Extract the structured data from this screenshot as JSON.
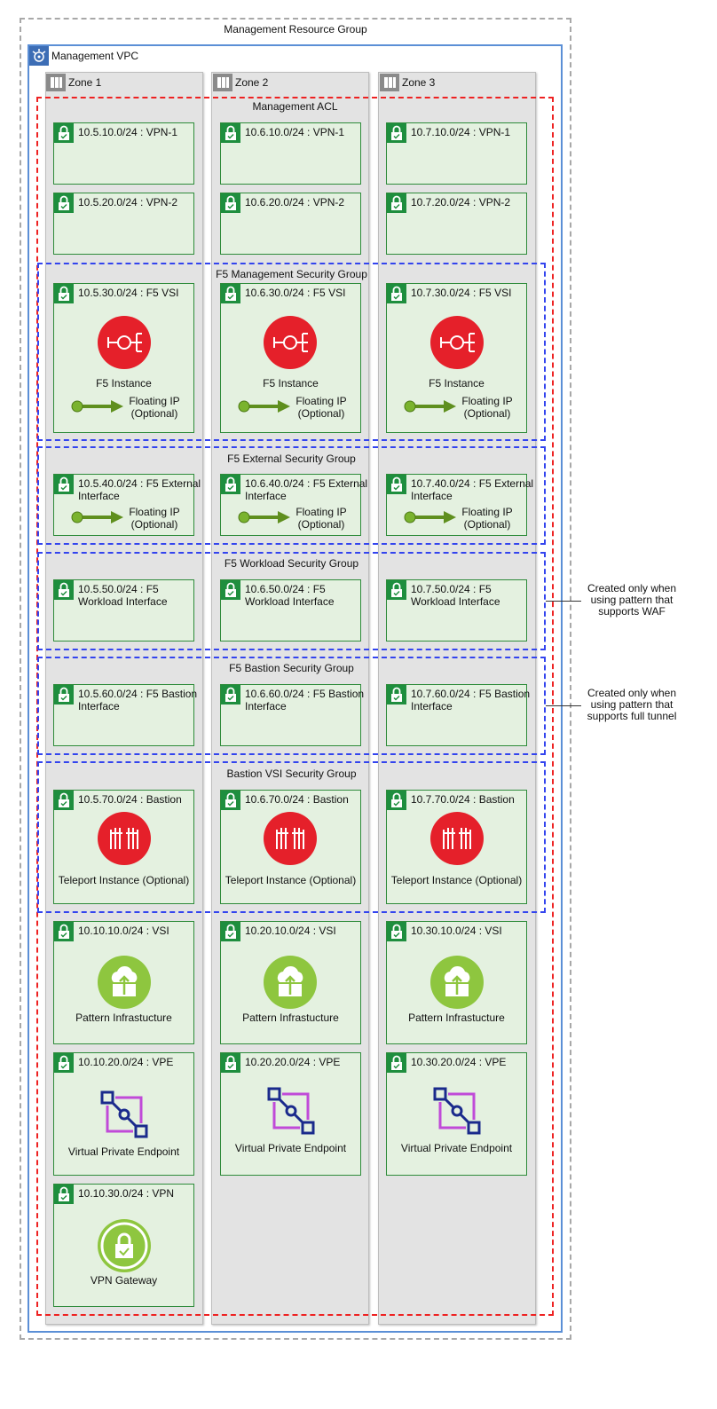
{
  "resource_group": {
    "title": "Management Resource Group"
  },
  "vpc": {
    "title": "Management VPC",
    "icon": "vpc-icon"
  },
  "zones": [
    {
      "title": "Zone 1"
    },
    {
      "title": "Zone 2"
    },
    {
      "title": "Zone 3"
    }
  ],
  "acl": {
    "title": "Management ACL"
  },
  "security_groups": {
    "f5_management": "F5 Management Security Group",
    "f5_external": "F5 External Security Group",
    "f5_workload": "F5 Workload Security Group",
    "f5_bastion": "F5 Bastion Security Group",
    "bastion_vsi": "Bastion VSI Security Group"
  },
  "subnets": {
    "vpn1": [
      "10.5.10.0/24 : VPN-1",
      "10.6.10.0/24 : VPN-1",
      "10.7.10.0/24 : VPN-1"
    ],
    "vpn2": [
      "10.5.20.0/24 : VPN-2",
      "10.6.20.0/24 : VPN-2",
      "10.7.20.0/24 : VPN-2"
    ],
    "f5vsi": [
      "10.5.30.0/24 : F5 VSI",
      "10.6.30.0/24 : F5 VSI",
      "10.7.30.0/24 : F5 VSI"
    ],
    "f5ext": [
      "10.5.40.0/24 : F5 External Interface",
      "10.6.40.0/24 : F5 External Interface",
      "10.7.40.0/24 : F5 External Interface"
    ],
    "f5wl": [
      "10.5.50.0/24 : F5 Workload Interface",
      "10.6.50.0/24 : F5 Workload Interface",
      "10.7.50.0/24 : F5 Workload Interface"
    ],
    "f5bas": [
      "10.5.60.0/24 : F5 Bastion Interface",
      "10.6.60.0/24 : F5 Bastion Interface",
      "10.7.60.0/24 : F5 Bastion Interface"
    ],
    "bastion": [
      "10.5.70.0/24 : Bastion",
      "10.6.70.0/24 : Bastion",
      "10.7.70.0/24 : Bastion"
    ],
    "vsi": [
      "10.10.10.0/24 : VSI",
      "10.20.10.0/24 : VSI",
      "10.30.10.0/24 : VSI"
    ],
    "vpe": [
      "10.10.20.0/24 : VPE",
      "10.20.20.0/24 : VPE",
      "10.30.20.0/24 : VPE"
    ],
    "vpn": [
      "10.10.30.0/24 : VPN"
    ]
  },
  "labels": {
    "f5_instance": "F5 Instance",
    "floating_ip": "Floating IP (Optional)",
    "teleport": "Teleport Instance (Optional)",
    "pattern": "Pattern Infrastucture",
    "vpe": "Virtual Private Endpoint",
    "vpn_gateway": "VPN Gateway"
  },
  "notes": {
    "waf": "Created only when using pattern that supports WAF",
    "full_tunnel": "Created only when using pattern that supports full tunnel"
  },
  "colors": {
    "acl_border": "#ee2222",
    "security_group_border": "#3344ee",
    "subnet_fill": "#e4f1e0",
    "subnet_border": "#2e8b3a",
    "f5_icon": "#e5202a",
    "pattern_icon": "#8ec63f",
    "vpe_icon": "#1a2a8c"
  }
}
